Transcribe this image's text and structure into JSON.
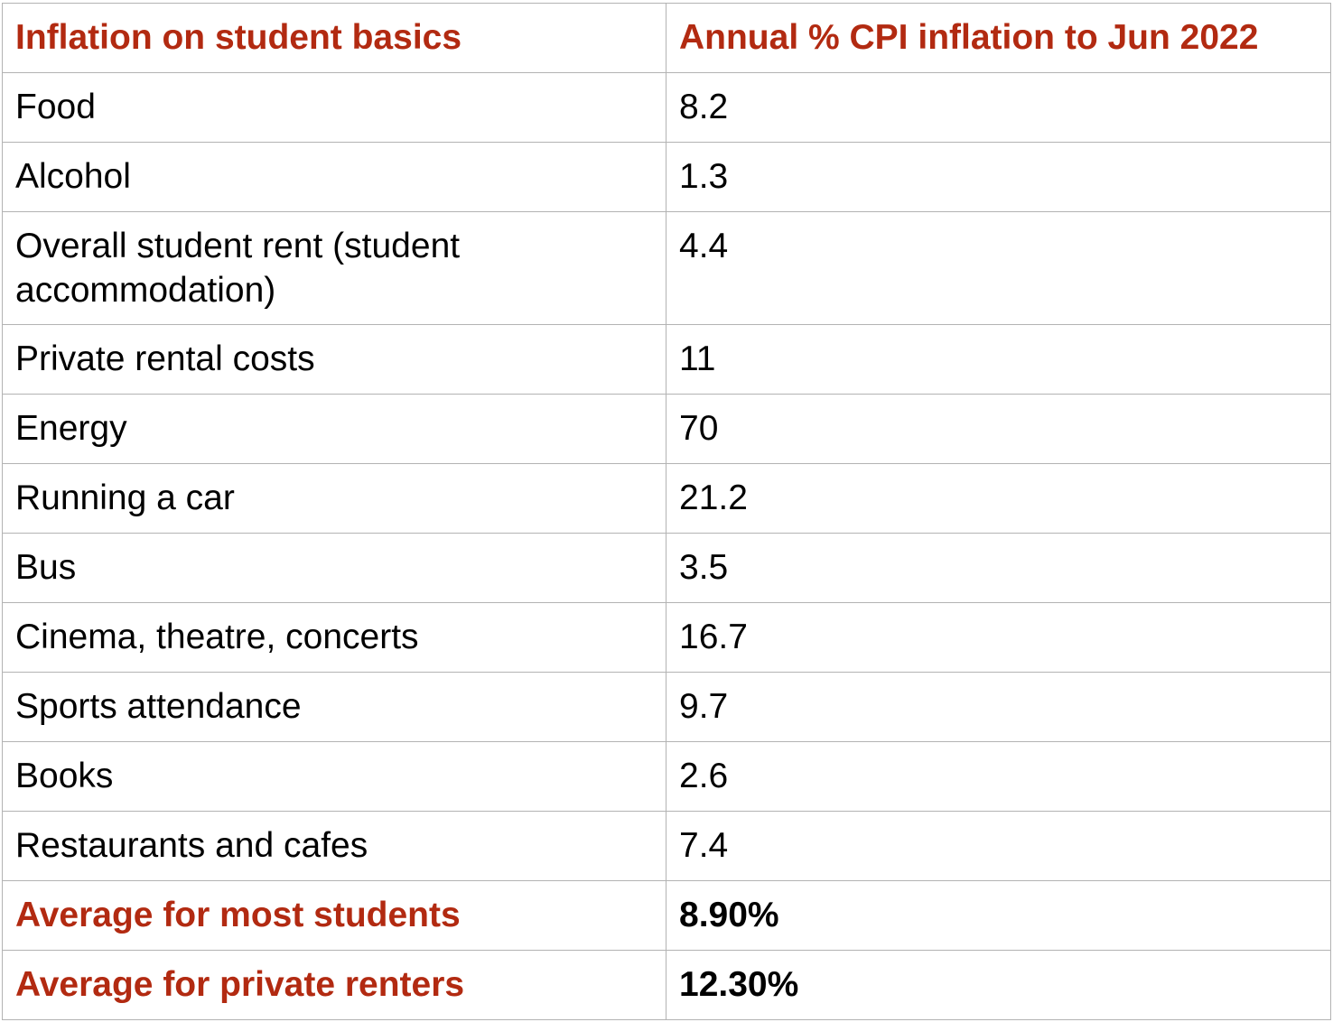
{
  "colors": {
    "accent_red": "#b22a11",
    "border_gray": "#b3b3b3",
    "text_black": "#000000",
    "background": "#ffffff"
  },
  "table": {
    "headers": [
      "Inflation on student basics",
      "Annual % CPI inflation to Jun 2022"
    ],
    "rows": [
      {
        "label": "Food",
        "value": "8.2",
        "emphasis": false
      },
      {
        "label": "Alcohol",
        "value": "1.3",
        "emphasis": false
      },
      {
        "label": "Overall student rent (student accommodation)",
        "value": "4.4",
        "emphasis": false
      },
      {
        "label": "Private rental costs",
        "value": "11",
        "emphasis": false
      },
      {
        "label": "Energy",
        "value": "70",
        "emphasis": false
      },
      {
        "label": "Running a car",
        "value": "21.2",
        "emphasis": false
      },
      {
        "label": "Bus",
        "value": "3.5",
        "emphasis": false
      },
      {
        "label": "Cinema, theatre, concerts",
        "value": "16.7",
        "emphasis": false
      },
      {
        "label": "Sports attendance",
        "value": "9.7",
        "emphasis": false
      },
      {
        "label": "Books",
        "value": "2.6",
        "emphasis": false
      },
      {
        "label": "Restaurants and cafes",
        "value": "7.4",
        "emphasis": false
      },
      {
        "label": "Average for most students",
        "value": "8.90%",
        "emphasis": true
      },
      {
        "label": "Average for private renters",
        "value": "12.30%",
        "emphasis": true
      }
    ]
  },
  "chart_data": {
    "type": "table",
    "title": "Inflation on student basics",
    "columns": [
      "Inflation on student basics",
      "Annual % CPI inflation to Jun 2022"
    ],
    "categories": [
      "Food",
      "Alcohol",
      "Overall student rent (student accommodation)",
      "Private rental costs",
      "Energy",
      "Running a car",
      "Bus",
      "Cinema, theatre, concerts",
      "Sports attendance",
      "Books",
      "Restaurants and cafes"
    ],
    "values": [
      8.2,
      1.3,
      4.4,
      11,
      70,
      21.2,
      3.5,
      16.7,
      9.7,
      2.6,
      7.4
    ],
    "summary_rows": [
      {
        "label": "Average for most students",
        "value": "8.90%"
      },
      {
        "label": "Average for private renters",
        "value": "12.30%"
      }
    ],
    "value_unit": "annual % CPI inflation to Jun 2022"
  }
}
